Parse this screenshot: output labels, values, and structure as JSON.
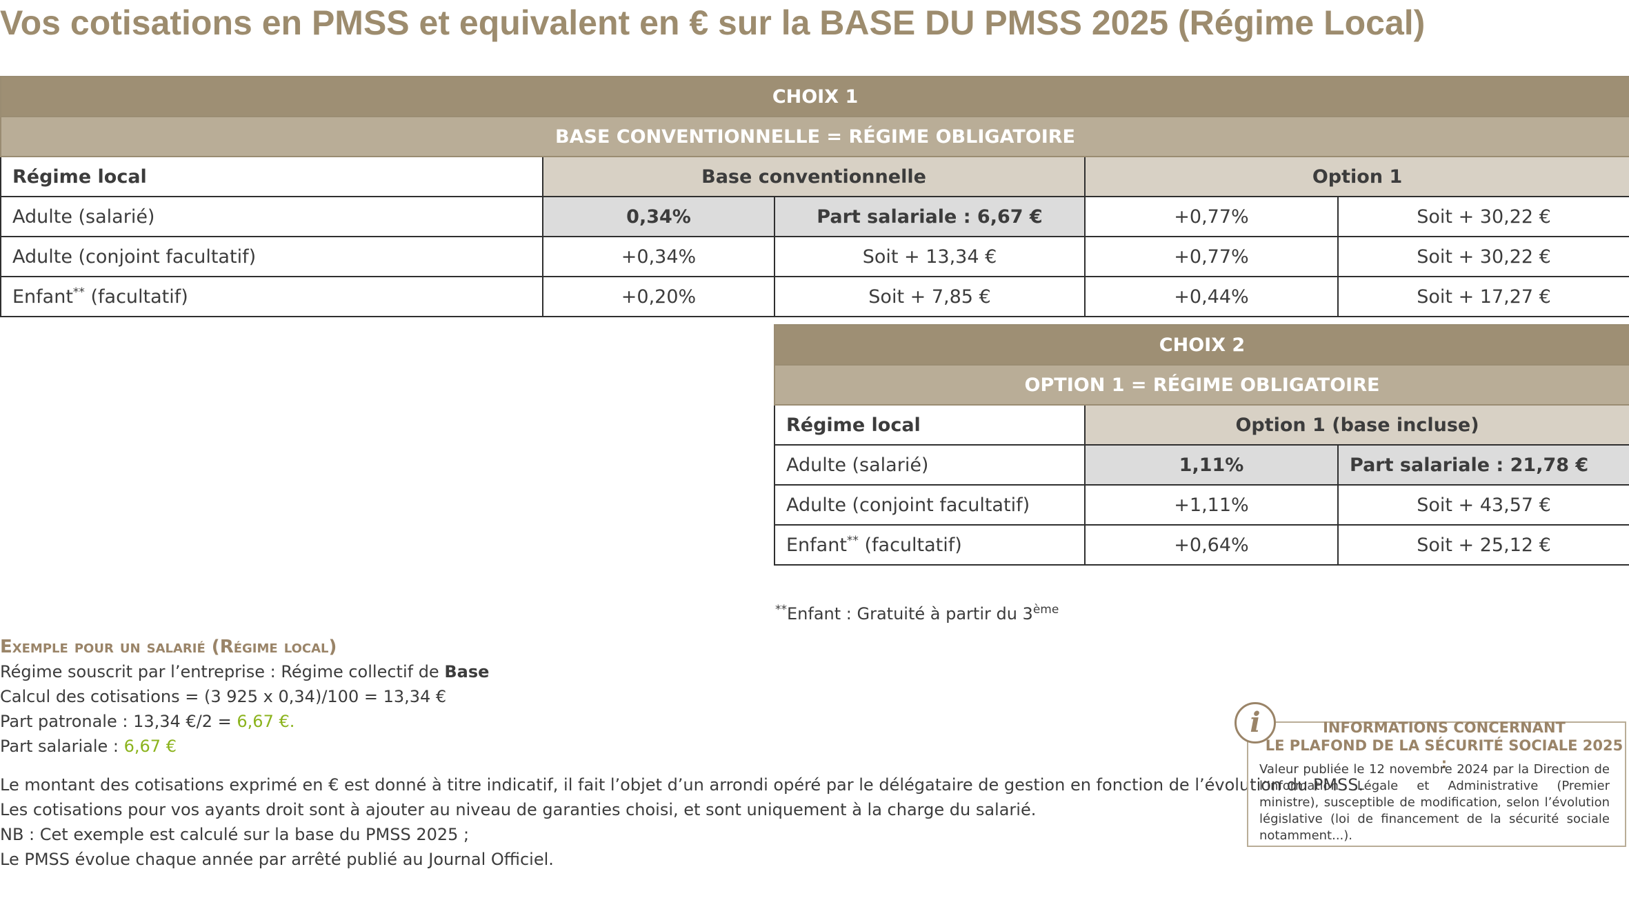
{
  "title": "Vos cotisations en PMSS et equivalent en € sur la BASE DU PMSS 2025 (Régime Local)",
  "choice1": {
    "heading": "CHOIX 1",
    "subheading": "BASE CONVENTIONNELLE = RÉGIME OBLIGATOIRE",
    "col_label": "Régime local",
    "col_base": "Base conventionnelle",
    "col_option": "Option 1",
    "rows": [
      {
        "label": "Adulte (salarié)",
        "sup": "",
        "label_rest": "",
        "base_pct": "0,34%",
        "base_eur": "Part salariale : 6,67 €",
        "opt_pct": "+0,77%",
        "opt_eur": "Soit + 30,22 €"
      },
      {
        "label": "Adulte (conjoint facultatif)",
        "sup": "",
        "label_rest": "",
        "base_pct": "+0,34%",
        "base_eur": "Soit + 13,34 €",
        "opt_pct": "+0,77%",
        "opt_eur": "Soit + 30,22 €"
      },
      {
        "label": "Enfant",
        "sup": "**",
        "label_rest": " (facultatif)",
        "base_pct": "+0,20%",
        "base_eur": "Soit + 7,85 €",
        "opt_pct": "+0,44%",
        "opt_eur": "Soit + 17,27 €"
      }
    ]
  },
  "choice2": {
    "heading": "CHOIX 2",
    "subheading": "OPTION 1 = RÉGIME OBLIGATOIRE",
    "col_label": "Régime local",
    "col_option": "Option 1 (base incluse)",
    "rows": [
      {
        "label": "Adulte (salarié)",
        "sup": "",
        "label_rest": "",
        "pct": "1,11%",
        "eur": "Part salariale : 21,78 €"
      },
      {
        "label": "Adulte (conjoint facultatif)",
        "sup": "",
        "label_rest": "",
        "pct": "+1,11%",
        "eur": "Soit + 43,57 €"
      },
      {
        "label": "Enfant",
        "sup": "**",
        "label_rest": " (facultatif)",
        "pct": "+0,64%",
        "eur": "Soit + 25,12 €"
      }
    ]
  },
  "footnote": {
    "prefix": "**",
    "text": "Enfant : Gratuité à partir du 3",
    "sup": "ème"
  },
  "example": {
    "title": "Exemple pour un salarié (Régime local)",
    "line1_text": "Régime souscrit par l’entreprise : Régime collectif de ",
    "line1_bold": "Base",
    "line2": "Calcul des cotisations = (3 925 x 0,34)/100 = 13,34 €",
    "line3_text": "Part patronale : 13,34 €/2 = ",
    "line3_value": "6,67 €.",
    "line4_text": "Part salariale : ",
    "line4_value": "6,67 €",
    "note1": "Le montant des cotisations exprimé en € est donné à titre indicatif, il fait l’objet d’un arrondi opéré par le délégataire de gestion en fonction de l’évolution du PMSS.",
    "note2": "Les cotisations pour vos ayants droit sont à ajouter au niveau de garanties choisi, et sont uniquement à la charge du salarié.",
    "note3": "NB : Cet exemple est calculé sur la base du PMSS 2025 ;",
    "note4": "Le PMSS évolue chaque année par arrêté publié au Journal Officiel."
  },
  "info": {
    "icon": "i",
    "title_line1": "INFORMATIONS CONCERNANT",
    "title_line2": "LE PLAFOND DE LA SÉCURITÉ SOCIALE 2025 :",
    "text": "Valeur publiée le 12 novembre 2024 par la Direction de l’Information Légale et Administrative (Premier ministre), susceptible de modification, selon l’évolution législative (loi de financement de la sécurité sociale notamment...)."
  }
}
